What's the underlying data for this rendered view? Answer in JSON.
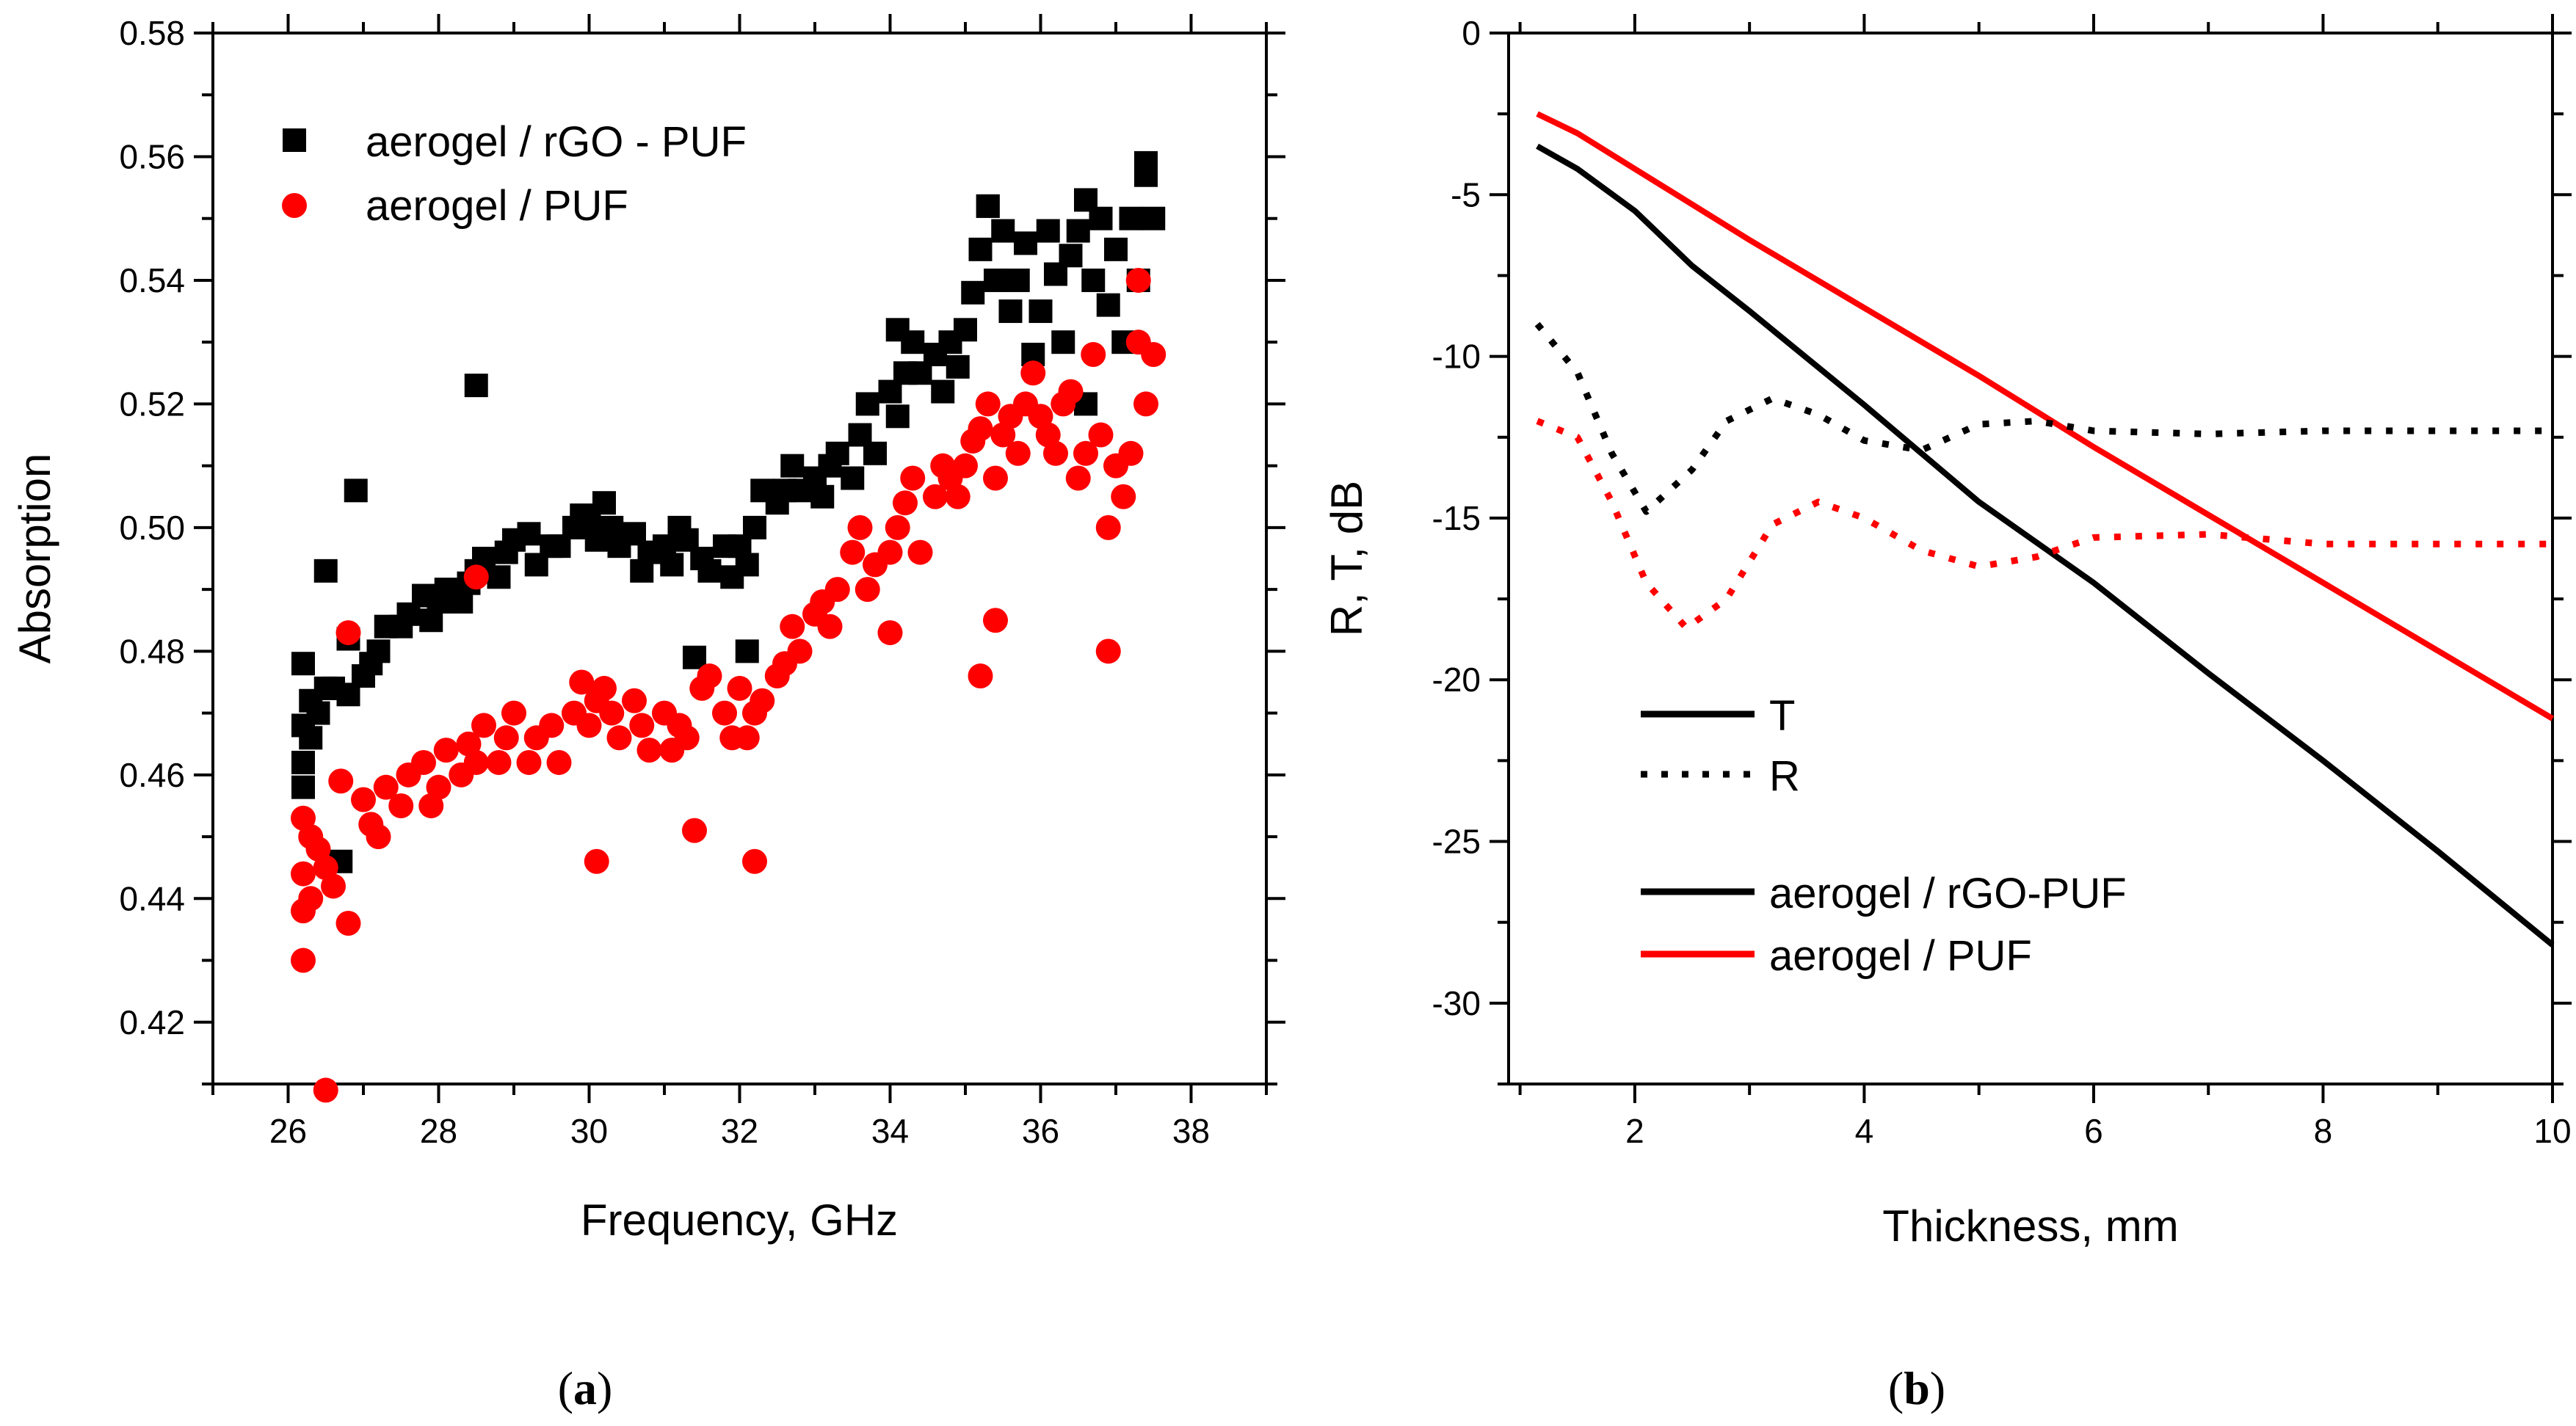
{
  "chart_data": [
    {
      "type": "scatter",
      "panel_label": {
        "open": "(",
        "letter": "a",
        "close": ")"
      },
      "title": "",
      "xlabel": "Frequency, GHz",
      "ylabel": "Absorption",
      "xlim": [
        25,
        39
      ],
      "ylim": [
        0.41,
        0.58
      ],
      "xticks": [
        26,
        28,
        30,
        32,
        34,
        36,
        38
      ],
      "xtick_labels": [
        "26",
        "28",
        "30",
        "32",
        "34",
        "36",
        "38"
      ],
      "yticks": [
        0.42,
        0.44,
        0.46,
        0.48,
        0.5,
        0.52,
        0.54,
        0.56,
        0.58
      ],
      "ytick_labels": [
        "0.42",
        "0.44",
        "0.46",
        "0.48",
        "0.50",
        "0.52",
        "0.54",
        "0.56",
        "0.58"
      ],
      "legend_position": "top-left",
      "series": [
        {
          "name": "aerogel / rGO - PUF",
          "marker": "square",
          "color": "#000000",
          "x": [
            26.2,
            26.2,
            26.2,
            26.2,
            26.3,
            26.3,
            26.4,
            26.5,
            26.6,
            26.8,
            26.8,
            27.0,
            27.1,
            27.2,
            27.3,
            27.5,
            27.6,
            27.8,
            27.9,
            28.0,
            28.1,
            28.3,
            28.4,
            28.5,
            28.6,
            28.8,
            28.9,
            29.0,
            29.2,
            29.3,
            29.5,
            29.6,
            29.8,
            29.9,
            30.0,
            30.1,
            30.2,
            30.3,
            30.4,
            30.6,
            30.7,
            30.8,
            31.0,
            31.1,
            31.2,
            31.3,
            31.5,
            31.6,
            31.8,
            31.9,
            32.0,
            32.1,
            32.2,
            32.3,
            32.5,
            32.6,
            32.7,
            32.8,
            33.0,
            33.1,
            33.2,
            33.3,
            33.5,
            33.6,
            33.7,
            33.8,
            34.0,
            34.1,
            34.2,
            34.3,
            34.4,
            34.6,
            34.7,
            34.8,
            34.9,
            35.0,
            35.1,
            35.2,
            35.3,
            35.4,
            35.5,
            35.6,
            35.7,
            35.8,
            35.9,
            36.0,
            36.1,
            36.2,
            36.3,
            36.4,
            36.5,
            36.6,
            36.7,
            36.8,
            36.9,
            37.0,
            37.1,
            37.2,
            37.3,
            37.4,
            37.5,
            26.5,
            28.5,
            26.9,
            26.7,
            31.4,
            32.1,
            36.6,
            37.4,
            35.3,
            34.1
          ],
          "y": [
            0.478,
            0.468,
            0.462,
            0.458,
            0.472,
            0.466,
            0.47,
            0.474,
            0.474,
            0.482,
            0.473,
            0.476,
            0.478,
            0.48,
            0.484,
            0.484,
            0.486,
            0.489,
            0.485,
            0.488,
            0.49,
            0.488,
            0.491,
            0.493,
            0.495,
            0.492,
            0.496,
            0.498,
            0.499,
            0.494,
            0.497,
            0.497,
            0.5,
            0.502,
            0.501,
            0.498,
            0.504,
            0.5,
            0.497,
            0.499,
            0.493,
            0.496,
            0.497,
            0.494,
            0.5,
            0.498,
            0.495,
            0.493,
            0.497,
            0.492,
            0.497,
            0.494,
            0.5,
            0.506,
            0.504,
            0.506,
            0.51,
            0.506,
            0.508,
            0.505,
            0.51,
            0.512,
            0.508,
            0.515,
            0.52,
            0.512,
            0.522,
            0.518,
            0.525,
            0.53,
            0.525,
            0.528,
            0.522,
            0.53,
            0.526,
            0.532,
            0.538,
            0.545,
            0.552,
            0.54,
            0.548,
            0.535,
            0.54,
            0.546,
            0.528,
            0.535,
            0.548,
            0.541,
            0.53,
            0.544,
            0.548,
            0.553,
            0.54,
            0.55,
            0.536,
            0.545,
            0.53,
            0.55,
            0.54,
            0.557,
            0.55,
            0.493,
            0.523,
            0.506,
            0.446,
            0.479,
            0.48,
            0.52,
            0.559,
            0.552,
            0.532
          ]
        },
        {
          "name": "aerogel / PUF",
          "marker": "circle",
          "color": "#ff0000",
          "x": [
            26.2,
            26.2,
            26.2,
            26.2,
            26.3,
            26.3,
            26.4,
            26.5,
            26.6,
            26.7,
            26.8,
            27.0,
            27.1,
            27.2,
            27.3,
            27.5,
            27.6,
            27.8,
            27.9,
            28.0,
            28.1,
            28.3,
            28.4,
            28.5,
            28.6,
            28.8,
            28.9,
            29.0,
            29.2,
            29.3,
            29.5,
            29.6,
            29.8,
            29.9,
            30.0,
            30.1,
            30.2,
            30.3,
            30.4,
            30.6,
            30.7,
            30.8,
            31.0,
            31.1,
            31.2,
            31.3,
            31.5,
            31.6,
            31.8,
            31.9,
            32.0,
            32.1,
            32.2,
            32.3,
            32.5,
            32.6,
            32.7,
            32.8,
            33.0,
            33.1,
            33.2,
            33.3,
            33.5,
            33.6,
            33.7,
            33.8,
            34.0,
            34.1,
            34.2,
            34.3,
            34.4,
            34.6,
            34.7,
            34.8,
            34.9,
            35.0,
            35.1,
            35.2,
            35.3,
            35.4,
            35.5,
            35.6,
            35.7,
            35.8,
            35.9,
            36.0,
            36.1,
            36.2,
            36.3,
            36.4,
            36.5,
            36.6,
            36.7,
            36.8,
            36.9,
            37.0,
            37.1,
            37.2,
            37.3,
            37.4,
            37.5,
            26.5,
            28.5,
            26.8,
            35.2,
            35.4,
            36.9,
            30.1,
            32.2,
            31.4,
            34.0,
            37.3
          ],
          "y": [
            0.453,
            0.444,
            0.438,
            0.43,
            0.45,
            0.44,
            0.448,
            0.445,
            0.442,
            0.459,
            0.436,
            0.456,
            0.452,
            0.45,
            0.458,
            0.455,
            0.46,
            0.462,
            0.455,
            0.458,
            0.464,
            0.46,
            0.465,
            0.462,
            0.468,
            0.462,
            0.466,
            0.47,
            0.462,
            0.466,
            0.468,
            0.462,
            0.47,
            0.475,
            0.468,
            0.472,
            0.474,
            0.47,
            0.466,
            0.472,
            0.468,
            0.464,
            0.47,
            0.464,
            0.468,
            0.466,
            0.474,
            0.476,
            0.47,
            0.466,
            0.474,
            0.466,
            0.47,
            0.472,
            0.476,
            0.478,
            0.484,
            0.48,
            0.486,
            0.488,
            0.484,
            0.49,
            0.496,
            0.5,
            0.49,
            0.494,
            0.496,
            0.5,
            0.504,
            0.508,
            0.496,
            0.505,
            0.51,
            0.508,
            0.505,
            0.51,
            0.514,
            0.516,
            0.52,
            0.508,
            0.515,
            0.518,
            0.512,
            0.52,
            0.525,
            0.518,
            0.515,
            0.512,
            0.52,
            0.522,
            0.508,
            0.512,
            0.528,
            0.515,
            0.5,
            0.51,
            0.505,
            0.512,
            0.53,
            0.52,
            0.528,
            0.409,
            0.492,
            0.483,
            0.476,
            0.485,
            0.48,
            0.446,
            0.446,
            0.451,
            0.483,
            0.54
          ]
        }
      ]
    },
    {
      "type": "line",
      "panel_label": {
        "open": "(",
        "letter": "b",
        "close": ")"
      },
      "title": "",
      "xlabel": "Thickness, mm",
      "ylabel": "R, T, dB",
      "xlim": [
        0.9,
        10.0
      ],
      "ylim": [
        -32.5,
        0
      ],
      "xticks": [
        2,
        4,
        6,
        8,
        10
      ],
      "xtick_labels": [
        "2",
        "4",
        "6",
        "8",
        "10"
      ],
      "yticks": [
        0,
        -5,
        -10,
        -15,
        -20,
        -25,
        -30
      ],
      "ytick_labels": [
        "0",
        "-5",
        "-10",
        "-15",
        "-20",
        "-25",
        "-30"
      ],
      "legend_position": "bottom-left",
      "legend": {
        "style_entries": [
          {
            "label": "T",
            "dash": "solid",
            "color": "#000000"
          },
          {
            "label": "R",
            "dash": "dotted",
            "color": "#000000"
          }
        ],
        "color_entries": [
          {
            "label": "aerogel / rGO-PUF",
            "color": "#000000"
          },
          {
            "label": "aerogel / PUF",
            "color": "#ff0000"
          }
        ]
      },
      "series": [
        {
          "quantity": "T",
          "material": "aerogel / rGO-PUF",
          "color": "#000000",
          "dash": "solid",
          "x": [
            1.15,
            1.5,
            2.0,
            2.5,
            3.0,
            4.0,
            5.0,
            6.0,
            7.0,
            8.0,
            9.0,
            10.0
          ],
          "y": [
            -3.5,
            -4.2,
            -5.5,
            -7.2,
            -8.6,
            -11.5,
            -14.5,
            -17.0,
            -19.8,
            -22.5,
            -25.3,
            -28.2
          ]
        },
        {
          "quantity": "T",
          "material": "aerogel / PUF",
          "color": "#ff0000",
          "dash": "solid",
          "x": [
            1.15,
            1.5,
            2.0,
            2.5,
            3.0,
            4.0,
            5.0,
            6.0,
            7.0,
            8.0,
            9.0,
            10.0
          ],
          "y": [
            -2.5,
            -3.1,
            -4.2,
            -5.3,
            -6.4,
            -8.5,
            -10.6,
            -12.8,
            -14.9,
            -17.0,
            -19.1,
            -21.2
          ]
        },
        {
          "quantity": "R",
          "material": "aerogel / rGO-PUF",
          "color": "#000000",
          "dash": "dotted",
          "x": [
            1.15,
            1.5,
            1.8,
            2.1,
            2.5,
            2.8,
            3.2,
            3.6,
            4.0,
            4.5,
            5.0,
            5.5,
            6.0,
            7.0,
            8.0,
            9.0,
            10.0
          ],
          "y": [
            -9.0,
            -10.5,
            -13.0,
            -14.8,
            -13.5,
            -12.0,
            -11.3,
            -11.8,
            -12.6,
            -12.9,
            -12.1,
            -12.0,
            -12.3,
            -12.4,
            -12.3,
            -12.3,
            -12.3
          ]
        },
        {
          "quantity": "R",
          "material": "aerogel / PUF",
          "color": "#ff0000",
          "dash": "dotted",
          "x": [
            1.15,
            1.5,
            1.8,
            2.1,
            2.45,
            2.8,
            3.2,
            3.6,
            4.0,
            4.5,
            5.0,
            5.5,
            6.0,
            7.0,
            8.0,
            9.0,
            10.0
          ],
          "y": [
            -12.0,
            -12.5,
            -14.5,
            -17.0,
            -18.4,
            -17.5,
            -15.2,
            -14.5,
            -15.0,
            -16.0,
            -16.5,
            -16.2,
            -15.6,
            -15.5,
            -15.8,
            -15.8,
            -15.8
          ]
        }
      ]
    }
  ]
}
